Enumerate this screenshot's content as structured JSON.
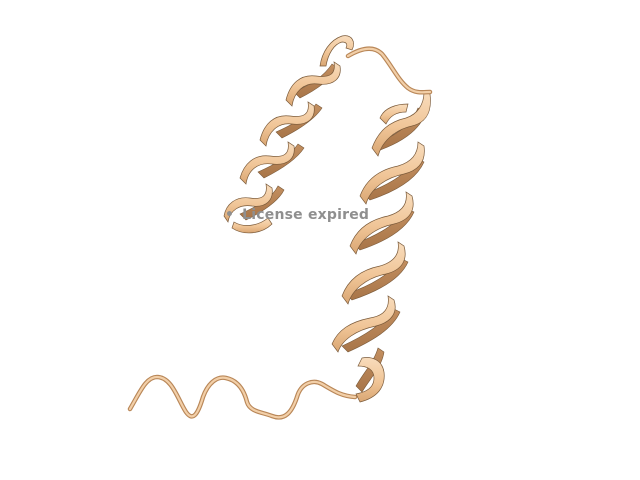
{
  "viewer": {
    "watermark_text": "License expired",
    "watermark_bullet": "•"
  },
  "structure": {
    "molecule": "protein-cartoon",
    "secondary_structure": [
      "coil",
      "helix",
      "loop",
      "helix"
    ],
    "colors": {
      "ribbon_face": "#f3c79c",
      "ribbon_shadow": "#c89566",
      "ribbon_edge": "#7a5a3a",
      "background": "#ffffff"
    }
  }
}
